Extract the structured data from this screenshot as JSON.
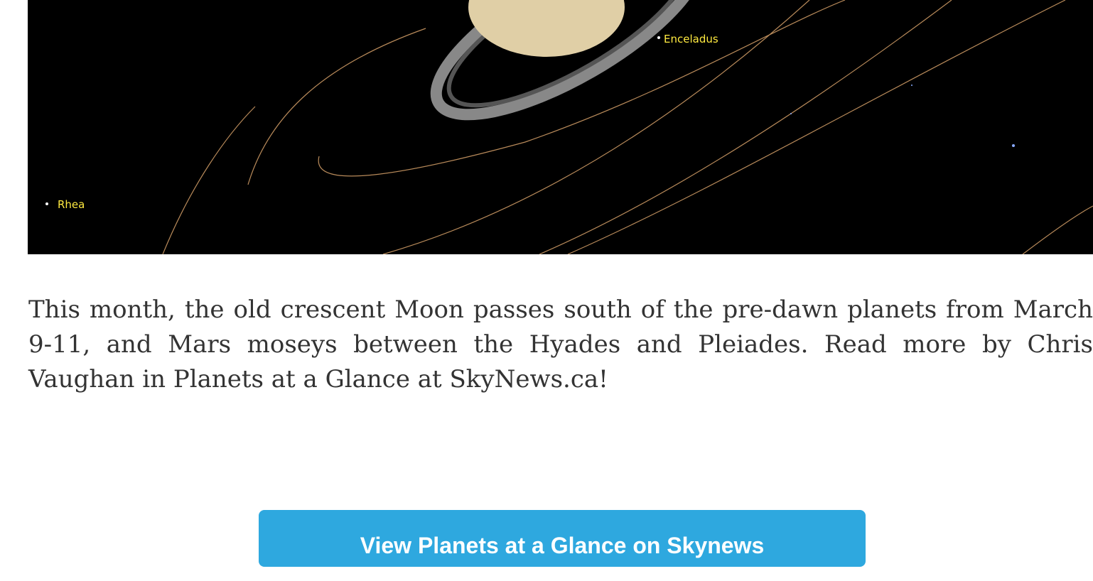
{
  "image": {
    "labels": [
      "Enceladus",
      "Rhea"
    ]
  },
  "paragraph": "This month, the old crescent Moon passes south of the pre-dawn planets from March 9-11, and Mars moseys between the Hyades and Pleiades. Read more by Chris Vaughan in Planets at a Glance at SkyNews.ca!",
  "button": "View Planets at a Glance on Skynews"
}
